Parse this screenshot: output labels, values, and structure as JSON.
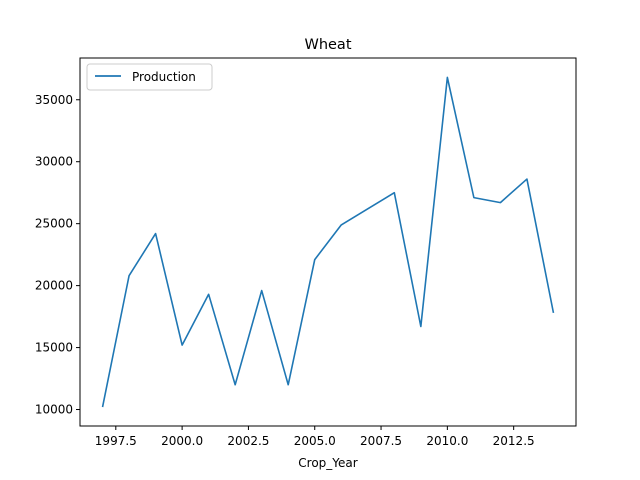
{
  "chart_data": {
    "type": "line",
    "title": "Wheat",
    "xlabel": "Crop_Year",
    "ylabel": "",
    "xlim": [
      1996.15,
      2014.85
    ],
    "ylim": [
      8670,
      38370
    ],
    "grid": false,
    "legend_position": "top-left",
    "x_ticks": [
      1997.5,
      2000.0,
      2002.5,
      2005.0,
      2007.5,
      2010.0,
      2012.5
    ],
    "x_tick_labels": [
      "1997.5",
      "2000.0",
      "2002.5",
      "2005.0",
      "2007.5",
      "2010.0",
      "2012.5"
    ],
    "y_ticks": [
      10000,
      15000,
      20000,
      25000,
      30000,
      35000
    ],
    "y_tick_labels": [
      "10000",
      "15000",
      "20000",
      "25000",
      "30000",
      "35000"
    ],
    "x": [
      1997,
      1998,
      1999,
      2000,
      2001,
      2002,
      2003,
      2004,
      2005,
      2006,
      2007,
      2008,
      2009,
      2010,
      2011,
      2012,
      2013,
      2014
    ],
    "series": [
      {
        "name": "Production",
        "color": "#1f77b4",
        "values": [
          10200,
          20800,
          24200,
          15200,
          19300,
          12000,
          19600,
          12000,
          22100,
          24900,
          26200,
          27500,
          16700,
          36800,
          27100,
          26700,
          28600,
          17800
        ]
      }
    ]
  }
}
